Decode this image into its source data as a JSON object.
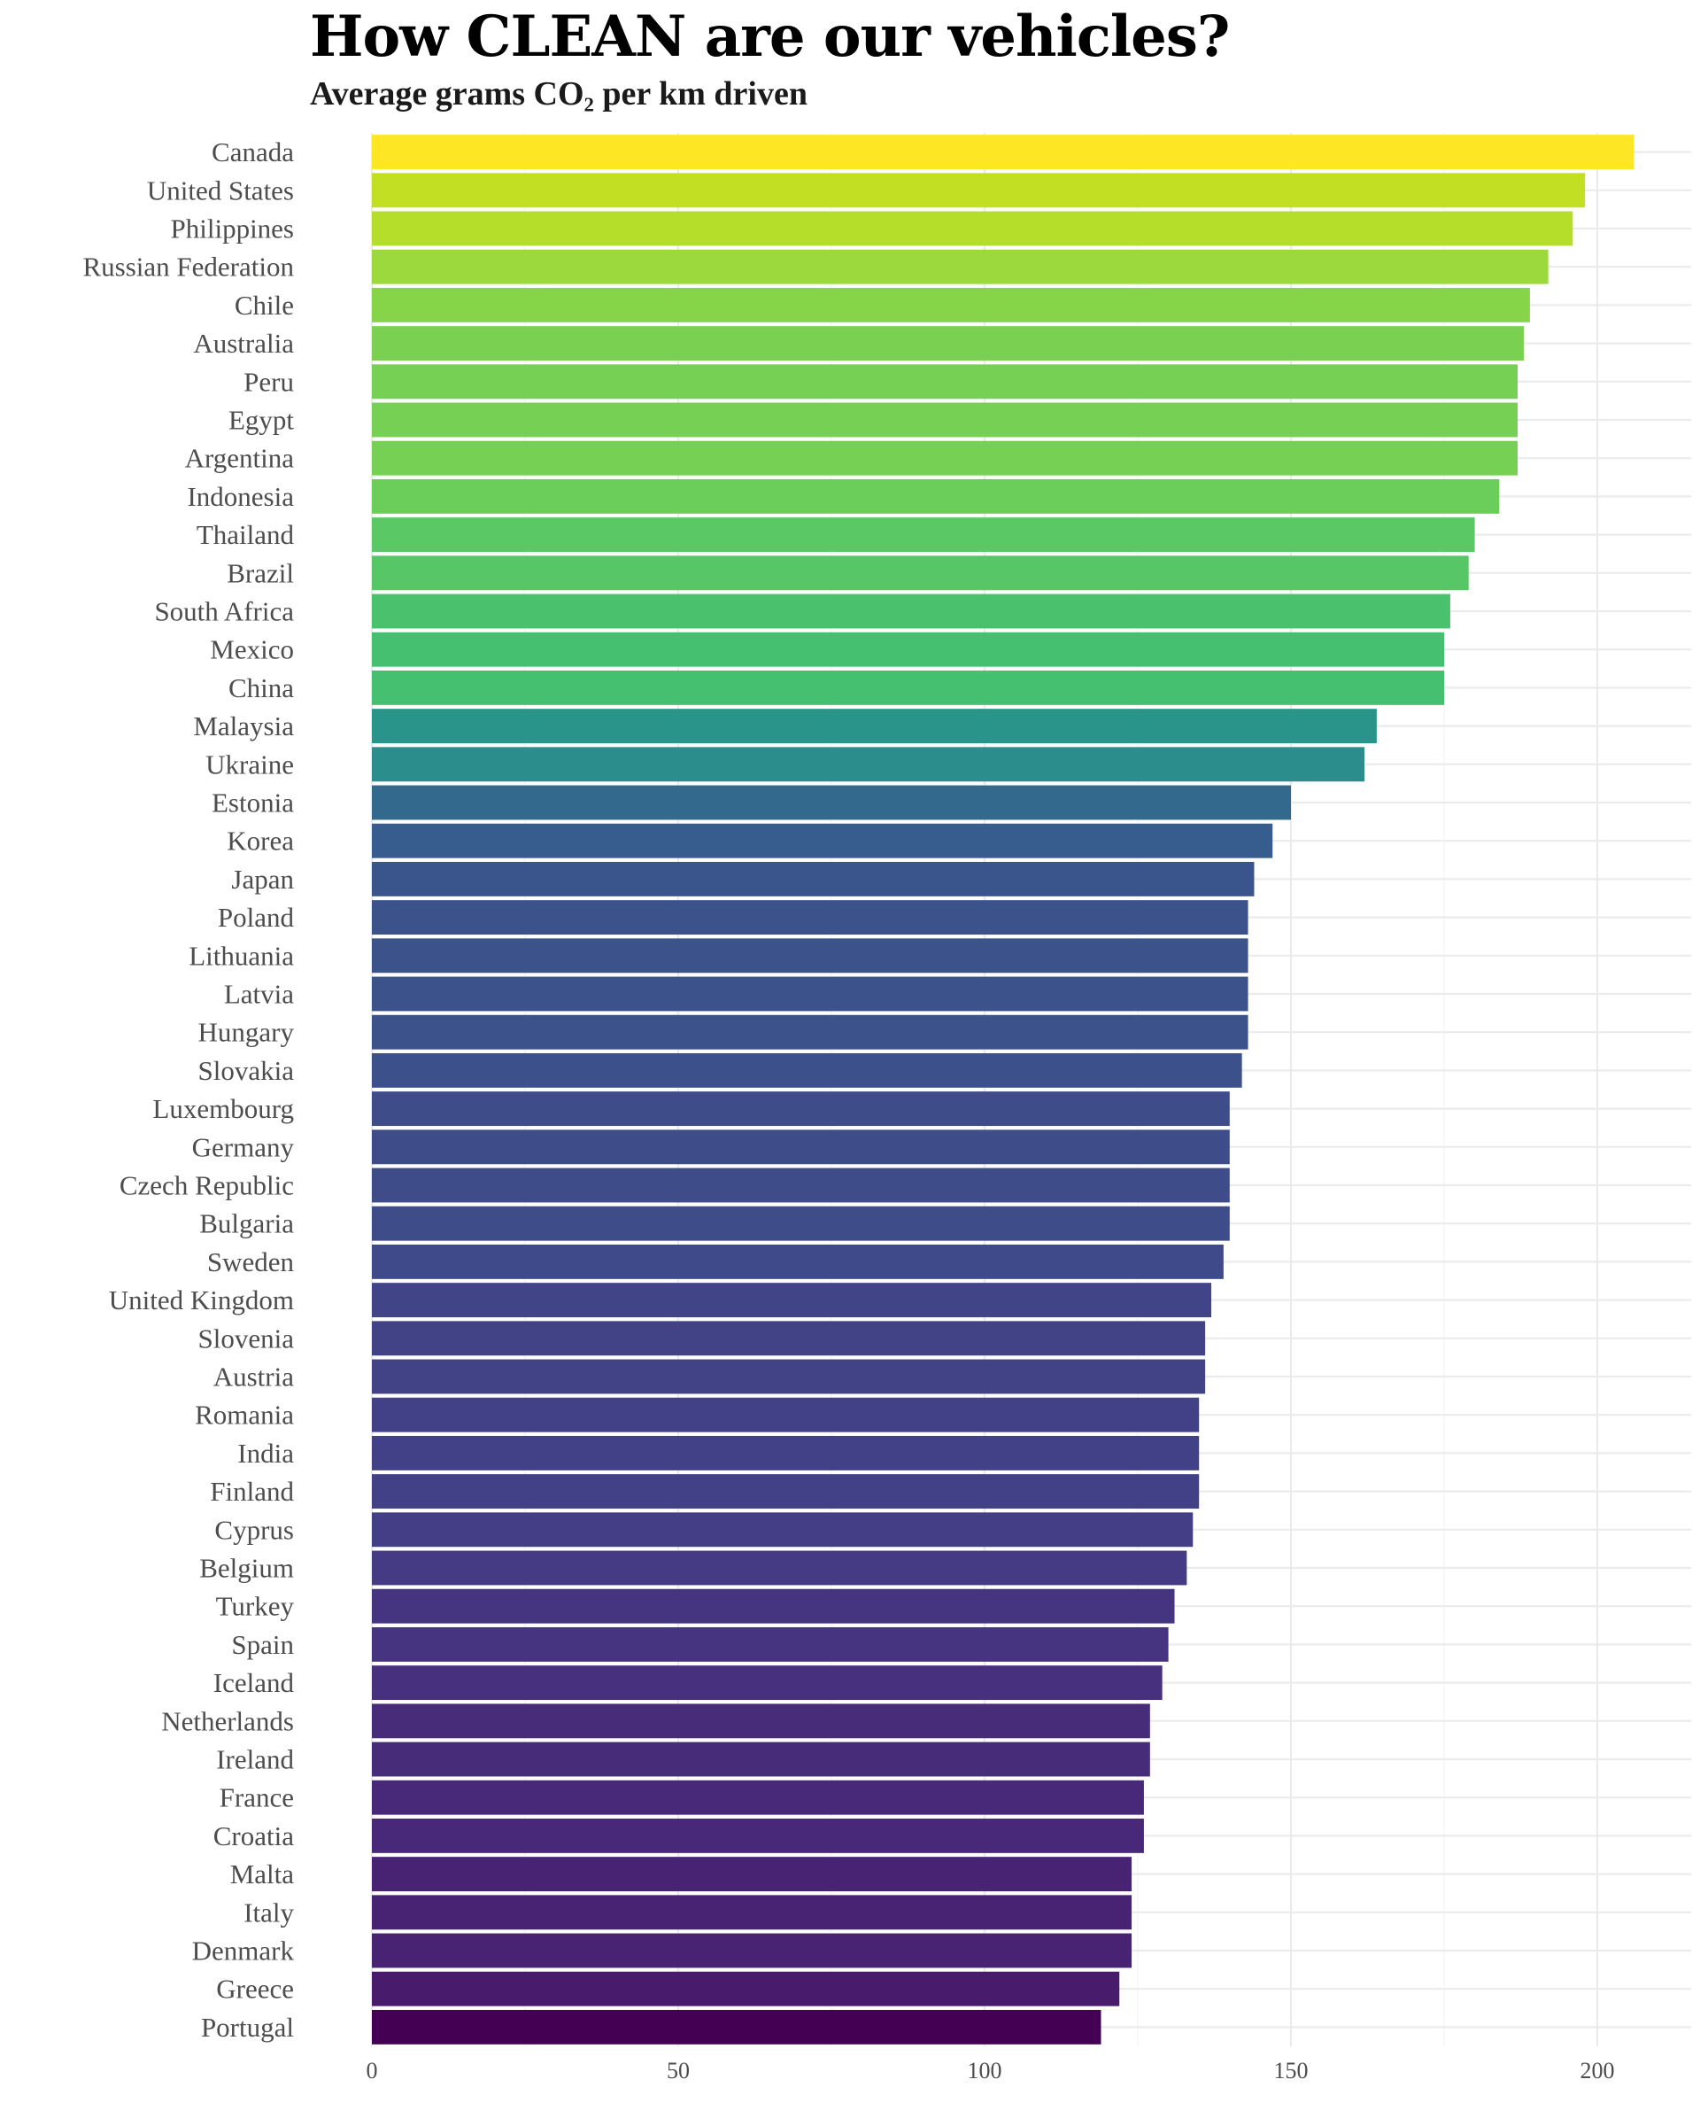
{
  "chart_data": {
    "type": "bar",
    "orientation": "horizontal",
    "title": "How CLEAN are our vehicles?",
    "subtitle": "Average grams CO₂ per km driven",
    "xlabel": "",
    "ylabel": "",
    "xlim": [
      0,
      215
    ],
    "x_ticks": [
      0,
      50,
      100,
      150,
      200
    ],
    "grid": true,
    "legend": "none",
    "color_scale": "viridis",
    "categories": [
      "Canada",
      "United States",
      "Philippines",
      "Russian Federation",
      "Chile",
      "Australia",
      "Peru",
      "Egypt",
      "Argentina",
      "Indonesia",
      "Thailand",
      "Brazil",
      "South Africa",
      "Mexico",
      "China",
      "Malaysia",
      "Ukraine",
      "Estonia",
      "Korea",
      "Japan",
      "Poland",
      "Lithuania",
      "Latvia",
      "Hungary",
      "Slovakia",
      "Luxembourg",
      "Germany",
      "Czech Republic",
      "Bulgaria",
      "Sweden",
      "United Kingdom",
      "Slovenia",
      "Austria",
      "Romania",
      "India",
      "Finland",
      "Cyprus",
      "Belgium",
      "Turkey",
      "Spain",
      "Iceland",
      "Netherlands",
      "Ireland",
      "France",
      "Croatia",
      "Malta",
      "Italy",
      "Denmark",
      "Greece",
      "Portugal"
    ],
    "values": [
      206,
      198,
      196,
      192,
      189,
      188,
      187,
      187,
      187,
      184,
      180,
      179,
      176,
      175,
      175,
      164,
      162,
      150,
      147,
      144,
      143,
      143,
      143,
      143,
      142,
      140,
      140,
      140,
      140,
      139,
      137,
      136,
      136,
      135,
      135,
      135,
      134,
      133,
      131,
      130,
      129,
      127,
      127,
      126,
      126,
      124,
      124,
      124,
      122,
      119
    ],
    "colors": [
      "#FDE725",
      "#C2DF23",
      "#B5DE2B",
      "#9BD93C",
      "#86D549",
      "#7AD151",
      "#75D054",
      "#75D054",
      "#75D054",
      "#6BCD5A",
      "#5AC864",
      "#57C666",
      "#4AC16D",
      "#45BF70",
      "#45BF70",
      "#29958A",
      "#2B8E8D",
      "#33698D",
      "#365D8D",
      "#3A548C",
      "#3B528B",
      "#3B528B",
      "#3B528B",
      "#3B528B",
      "#3C508B",
      "#3E4C8A",
      "#3E4C8A",
      "#3E4C8A",
      "#3E4C8A",
      "#3F4A8A",
      "#414587",
      "#424387",
      "#424387",
      "#424086",
      "#424086",
      "#424086",
      "#433E85",
      "#443B84",
      "#453581",
      "#463480",
      "#47317F",
      "#472C7A",
      "#472C7A",
      "#482878",
      "#482878",
      "#482374",
      "#482374",
      "#482374",
      "#481B6D",
      "#440154"
    ]
  }
}
